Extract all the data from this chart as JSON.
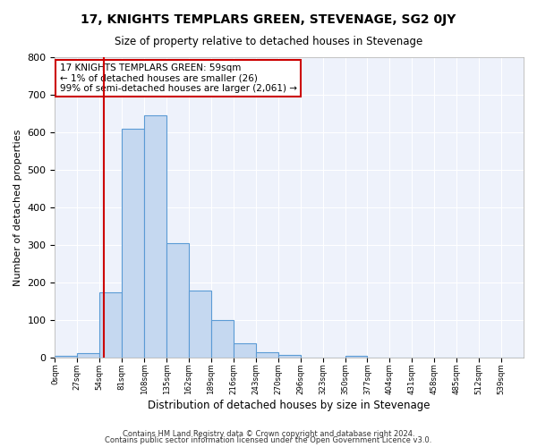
{
  "title": "17, KNIGHTS TEMPLARS GREEN, STEVENAGE, SG2 0JY",
  "subtitle": "Size of property relative to detached houses in Stevenage",
  "xlabel": "Distribution of detached houses by size in Stevenage",
  "ylabel": "Number of detached properties",
  "bar_color": "#c5d8f0",
  "bar_edge_color": "#5b9bd5",
  "background_color": "#eef2fb",
  "grid_color": "#ffffff",
  "bin_labels": [
    "0sqm",
    "27sqm",
    "54sqm",
    "81sqm",
    "108sqm",
    "135sqm",
    "162sqm",
    "189sqm",
    "216sqm",
    "243sqm",
    "270sqm",
    "296sqm",
    "323sqm",
    "350sqm",
    "377sqm",
    "404sqm",
    "431sqm",
    "458sqm",
    "485sqm",
    "512sqm",
    "539sqm"
  ],
  "bar_values": [
    5,
    12,
    175,
    610,
    645,
    305,
    180,
    100,
    40,
    14,
    8,
    0,
    0,
    5,
    0,
    0,
    0,
    0,
    0,
    0,
    0
  ],
  "ylim": [
    0,
    800
  ],
  "yticks": [
    0,
    100,
    200,
    300,
    400,
    500,
    600,
    700,
    800
  ],
  "property_line_x": 59,
  "property_line_color": "#cc0000",
  "annotation_text": "17 KNIGHTS TEMPLARS GREEN: 59sqm\n← 1% of detached houses are smaller (26)\n99% of semi-detached houses are larger (2,061) →",
  "annotation_box_color": "#cc0000",
  "footer_line1": "Contains HM Land Registry data © Crown copyright and database right 2024.",
  "footer_line2": "Contains public sector information licensed under the Open Government Licence v3.0.",
  "bin_width": 27,
  "n_bins": 21
}
